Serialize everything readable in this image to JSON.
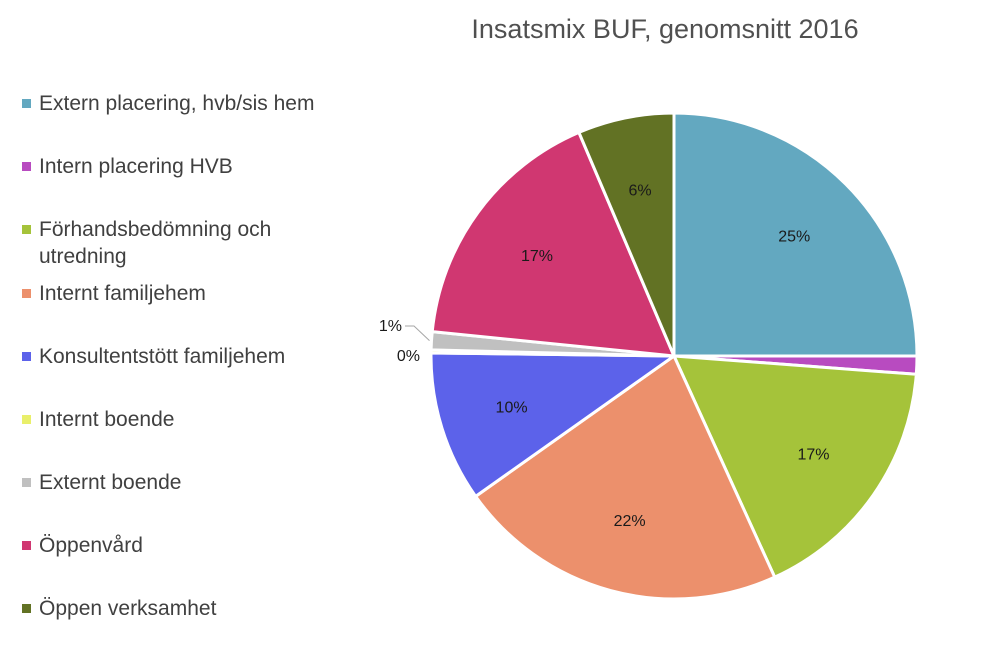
{
  "chart_data": {
    "type": "pie",
    "title": "Insatsmix BUF, genomsnitt 2016",
    "legend_position": "left",
    "slices": [
      {
        "name": "Extern placering, hvb/sis hem",
        "value": 25,
        "label": "25%",
        "color": "#63a8c0"
      },
      {
        "name": "Intern placering HVB",
        "value": 1.2,
        "label": "",
        "color": "#b84bc0"
      },
      {
        "name": "Förhandsbedömning och utredning",
        "value": 17,
        "label": "17%",
        "color": "#a5c33a"
      },
      {
        "name": "Internt familjehem",
        "value": 22,
        "label": "22%",
        "color": "#ec906c"
      },
      {
        "name": "Konsultentstött familjehem",
        "value": 10,
        "label": "10%",
        "color": "#5c62ea"
      },
      {
        "name": "Internt boende",
        "value": 0.2,
        "label": "0%",
        "color": "#e9ef6a"
      },
      {
        "name": "Externt boende",
        "value": 1.2,
        "label": "1%",
        "color": "#c0c0c0"
      },
      {
        "name": "Öppenvård",
        "value": 17,
        "label": "17%",
        "color": "#d03771"
      },
      {
        "name": "Öppen verksamhet",
        "value": 6.4,
        "label": "6%",
        "color": "#627224"
      }
    ]
  }
}
